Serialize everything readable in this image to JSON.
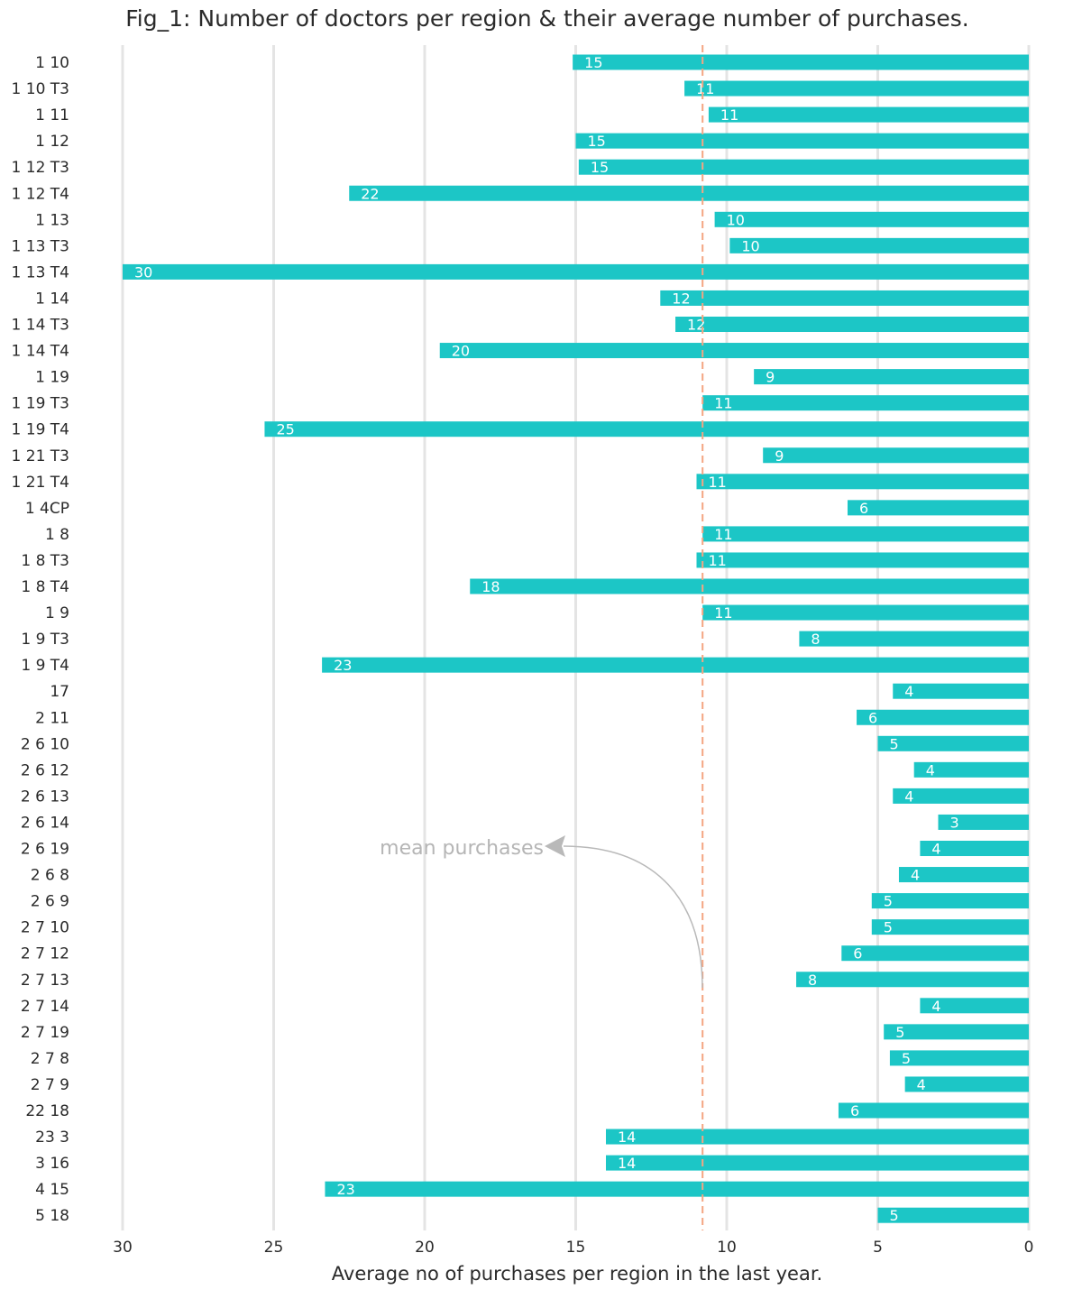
{
  "chart_data": {
    "type": "bar",
    "orientation": "horizontal",
    "x_axis_reversed": true,
    "title": "Fig_1: Number of doctors per region & their average number of purchases.",
    "xlabel": "Average no of purchases per region in the last year.",
    "ylabel": "",
    "xlim": [
      0,
      30
    ],
    "xticks": [
      30,
      25,
      20,
      15,
      10,
      5,
      0
    ],
    "grid": "vertical",
    "bar_color": "#1cc6c6",
    "mean_line_color": "#f4a582",
    "mean_value": 10.8,
    "annotation": "mean purchases",
    "categories": [
      "1 10",
      "1 10 T3",
      "1 11",
      "1 12",
      "1 12 T3",
      "1 12 T4",
      "1 13",
      "1 13 T3",
      "1 13 T4",
      "1 14",
      "1 14 T3",
      "1 14 T4",
      "1 19",
      "1 19 T3",
      "1 19 T4",
      "1 21 T3",
      "1 21 T4",
      "1 4CP",
      "1 8",
      "1 8 T3",
      "1 8 T4",
      "1 9",
      "1 9 T3",
      "1 9 T4",
      "17",
      "2 11",
      "2 6 10",
      "2 6 12",
      "2 6 13",
      "2 6 14",
      "2 6 19",
      "2 6 8",
      "2 6 9",
      "2 7 10",
      "2 7 12",
      "2 7 13",
      "2 7 14",
      "2 7 19",
      "2 7 8",
      "2 7 9",
      "22 18",
      "23 3",
      "3 16",
      "4 15",
      "5 18"
    ],
    "values": [
      15.1,
      11.4,
      10.6,
      15.0,
      14.9,
      22.5,
      10.4,
      9.9,
      30.0,
      12.2,
      11.7,
      19.5,
      9.1,
      10.8,
      25.3,
      8.8,
      11.0,
      6.0,
      10.8,
      11.0,
      18.5,
      10.8,
      7.6,
      23.4,
      4.5,
      5.7,
      5.0,
      3.8,
      4.5,
      3.0,
      3.6,
      4.3,
      5.2,
      5.2,
      6.2,
      7.7,
      3.6,
      4.8,
      4.6,
      4.1,
      6.3,
      14.0,
      14.0,
      23.3,
      5.0
    ],
    "labels": [
      "15",
      "11",
      "11",
      "15",
      "15",
      "22",
      "10",
      "10",
      "30",
      "12",
      "12",
      "20",
      "9",
      "11",
      "25",
      "9",
      "11",
      "6",
      "11",
      "11",
      "18",
      "11",
      "8",
      "23",
      "4",
      "6",
      "5",
      "4",
      "4",
      "3",
      "4",
      "4",
      "5",
      "5",
      "6",
      "8",
      "4",
      "5",
      "5",
      "4",
      "6",
      "14",
      "14",
      "23",
      "5"
    ]
  }
}
